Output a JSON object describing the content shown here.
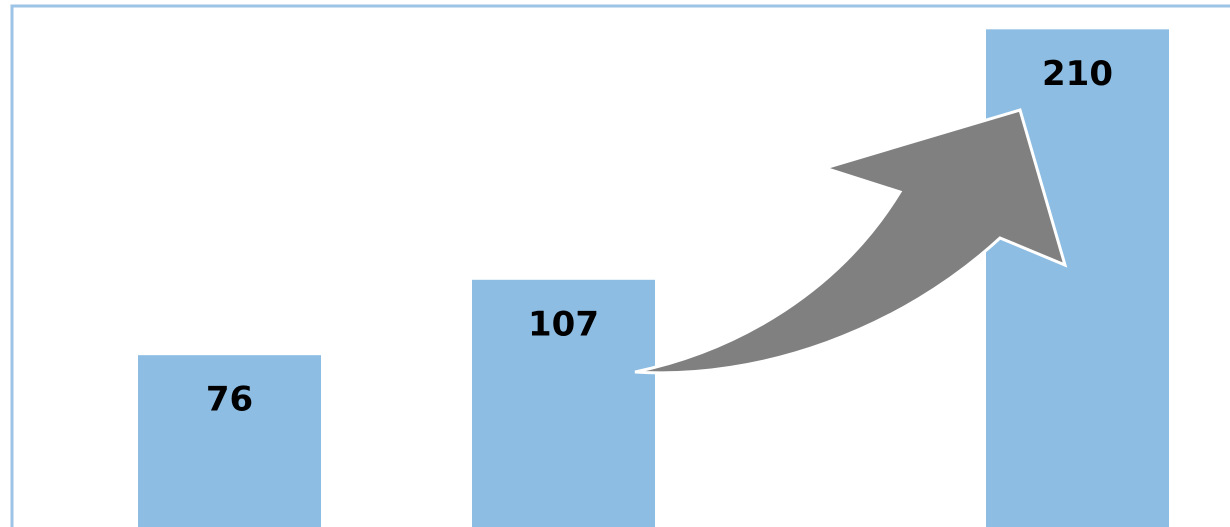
{
  "chart_data": {
    "type": "bar",
    "values": [
      76,
      107,
      210
    ],
    "color": "#8dbde3",
    "ylim": [
      0,
      220
    ]
  }
}
